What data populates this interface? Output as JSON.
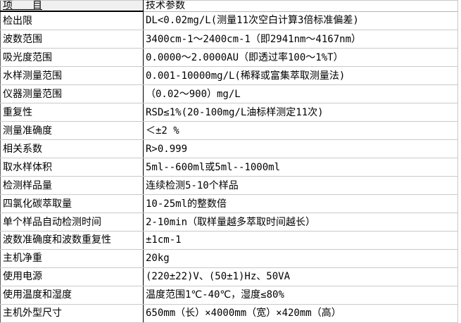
{
  "table": {
    "header": {
      "item": "项　　目",
      "value": "技术参数"
    },
    "rows": [
      {
        "label": "检出限",
        "value": "DL<0.02mg/L(测量11次空白计算3倍标准偏差)"
      },
      {
        "label": "波数范围",
        "value": "3400cm-1～2400cm-1（即2941nm～4167nm）"
      },
      {
        "label": "吸光度范围",
        "value": "0.0000～2.0000AU（即透过率100～1%T）"
      },
      {
        "label": "水样测量范围",
        "value": "0.001-10000mg/L(稀释或富集萃取测量法)"
      },
      {
        "label": "仪器测量范围",
        "value": "（0.02～900）mg/L"
      },
      {
        "label": "重复性",
        "value": "RSD≤1%(20-100mg/L油标样测定11次)"
      },
      {
        "label": "测量准确度",
        "value": "＜±2  %"
      },
      {
        "label": "相关系数",
        "value": "R>0.999"
      },
      {
        "label": "取水样体积",
        "value": "5ml--600ml或5ml--1000ml"
      },
      {
        "label": "检测样品量",
        "value": "连续检测5-10个样品"
      },
      {
        "label": "四氯化碳萃取量",
        "value": "10-25ml的整数倍"
      },
      {
        "label": "单个样品自动检测时间",
        "value": "2-10min（取样量越多萃取时间越长）"
      },
      {
        "label": "波数准确度和波数重复性",
        "value": "±1cm-1"
      },
      {
        "label": "主机净重",
        "value": "20kg"
      },
      {
        "label": "使用电源",
        "value": "(220±22)V、(50±1)Hz、50VA"
      },
      {
        "label": "使用温度和湿度",
        "value": "温度范围1℃-40℃，湿度≤80%"
      },
      {
        "label": "主机外型尺寸",
        "value": "650mm（长）×4000mm（宽）×420mm（高）"
      }
    ]
  },
  "colors": {
    "header_background": "#f0f0f0",
    "grid_line": "#c9c9c9",
    "divider_line": "#000000",
    "text": "#000000",
    "page_background": "#ffffff"
  }
}
